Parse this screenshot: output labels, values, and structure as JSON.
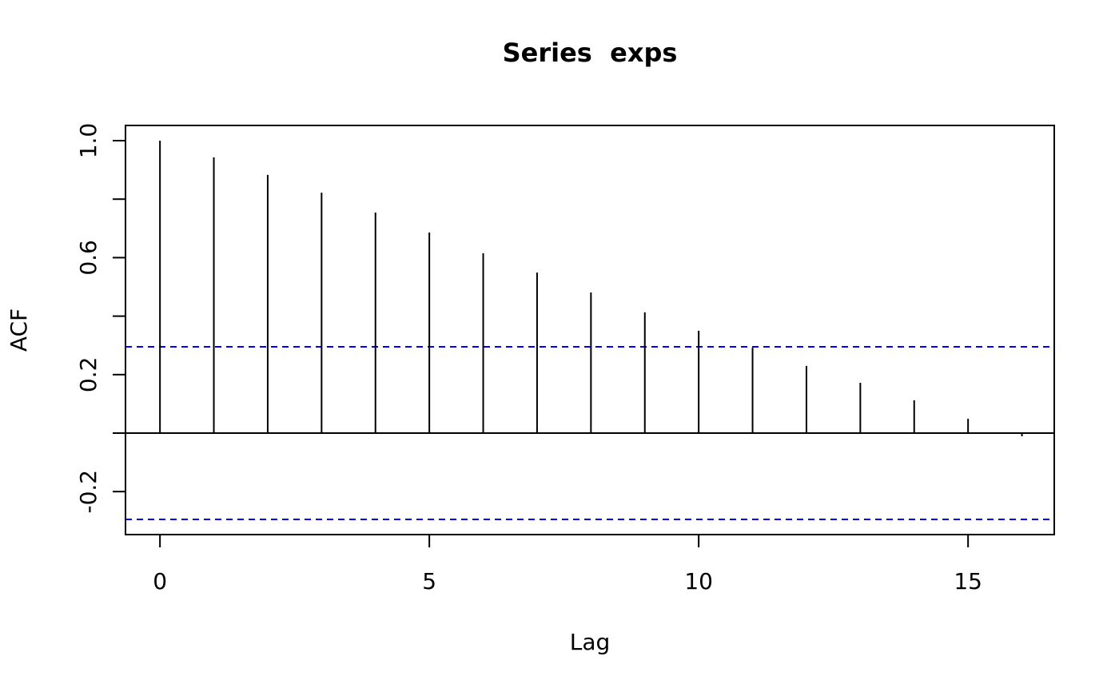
{
  "chart_data": {
    "type": "acf",
    "title": "Series  exps",
    "x_label": "Lag",
    "y_label": "ACF",
    "x": [
      0,
      1,
      2,
      3,
      4,
      5,
      6,
      7,
      8,
      9,
      10,
      11,
      12,
      13,
      14,
      15,
      16
    ],
    "values": [
      1,
      0.943,
      0.883,
      0.822,
      0.754,
      0.686,
      0.615,
      0.549,
      0.481,
      0.413,
      0.35,
      0.292,
      0.23,
      0.172,
      0.112,
      0.049,
      -0.011
    ],
    "color": "#000000",
    "confidence_band": [
      -0.295,
      0.295
    ],
    "confidence_color": "#0000ff",
    "xlim": [
      -0.64,
      16.6
    ],
    "ylim": [
      -0.347,
      1.052
    ],
    "xticks": [
      0,
      5,
      10,
      15
    ],
    "yticks": [
      -0.2,
      {
        "value": 0,
        "label": null
      },
      0.2,
      {
        "value": 0.4,
        "label": null
      },
      0.6,
      {
        "value": 0.8,
        "label": null
      },
      {
        "value": 1,
        "label": "1.0"
      }
    ]
  }
}
